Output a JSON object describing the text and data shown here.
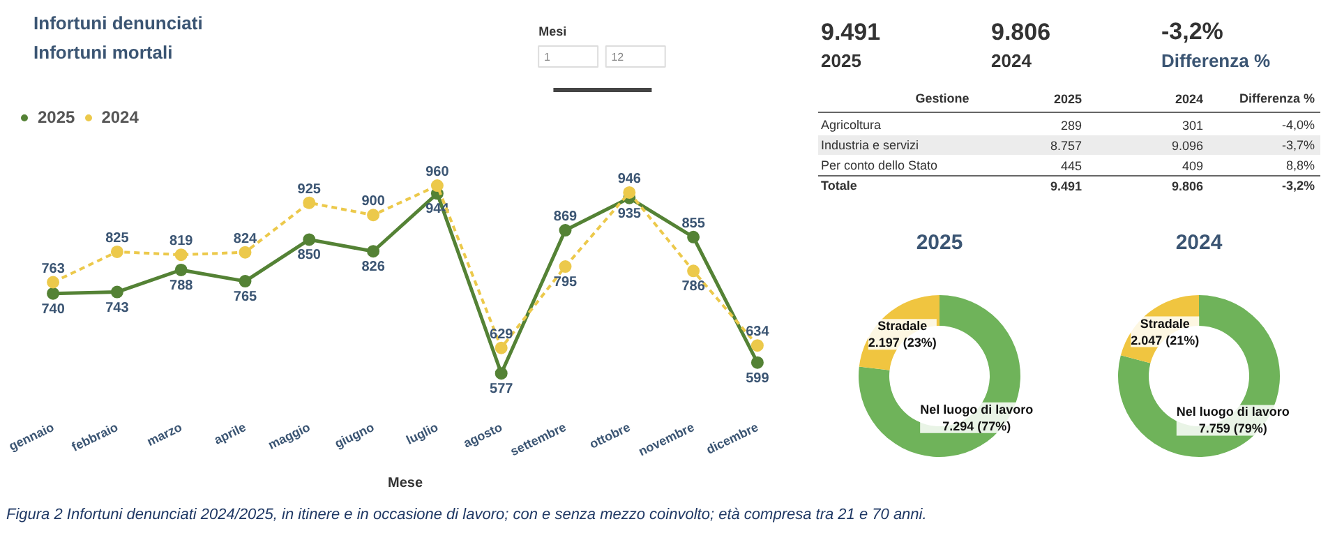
{
  "chart_data": [
    {
      "type": "other",
      "annotations": [
        "Infortuni denunciati",
        "Infortuni mortali",
        "Mesi",
        "1",
        "12"
      ]
    },
    {
      "type": "line",
      "categories": [
        "gennaio",
        "febbraio",
        "marzo",
        "aprile",
        "maggio",
        "giugno",
        "luglio",
        "agosto",
        "settembre",
        "ottobre",
        "novembre",
        "dicembre"
      ],
      "xlabel": "Mese",
      "data_labels": true,
      "legend": "top left",
      "marker": "circle",
      "tick_labels": "x",
      "annotations": [
        "Figura 2 Infortuni denunciati 2024/2025, in itinere e in occasione di lavoro; con e senza mezzo coinvolto; età compresa tra 21 e 70 anni."
      ],
      "series": [
        {
          "name": "2025",
          "color": "#548235",
          "line_style": "solid",
          "values": [
            740,
            743,
            788,
            765,
            850,
            826,
            944,
            577,
            869,
            935,
            855,
            599
          ]
        },
        {
          "name": "2024",
          "color": "#ecc94b",
          "line_style": "dashed",
          "values": [
            763,
            825,
            819,
            824,
            925,
            900,
            960,
            629,
            795,
            946,
            786,
            634
          ]
        }
      ]
    },
    {
      "type": "other",
      "categories": [
        "2025",
        "2024",
        "Differenza %"
      ],
      "value_labels": [
        "9.491",
        "9.806",
        "-3,2%"
      ]
    },
    {
      "type": "other",
      "ylabel": "Gestione",
      "categories": [
        "2025",
        "2024",
        "Differenza %"
      ],
      "y_categories": [
        "Agricoltura",
        "Industria e servizi",
        "Per conto dello Stato",
        "Totale"
      ],
      "cell_labels": [
        [
          "289",
          "301",
          "-4,0%"
        ],
        [
          "8.757",
          "9.096",
          "-3,7%"
        ],
        [
          "445",
          "409",
          "8,8%"
        ],
        [
          "9.491",
          "9.806",
          "-3,2%"
        ]
      ]
    },
    {
      "type": "donut",
      "title": "2025",
      "categories": [
        "Nel luogo di lavoro",
        "Stradale"
      ],
      "values": [
        7294,
        2197
      ],
      "value_labels": [
        "7.294 (77%)",
        "2.197 (23%)"
      ],
      "colors": [
        "#6fb35a",
        "#f0c540"
      ]
    },
    {
      "type": "donut",
      "title": "2024",
      "categories": [
        "Nel luogo di lavoro",
        "Stradale"
      ],
      "values": [
        7759,
        2047
      ],
      "value_labels": [
        "7.759 (79%)",
        "2.047 (21%)"
      ],
      "colors": [
        "#6fb35a",
        "#f0c540"
      ]
    }
  ]
}
